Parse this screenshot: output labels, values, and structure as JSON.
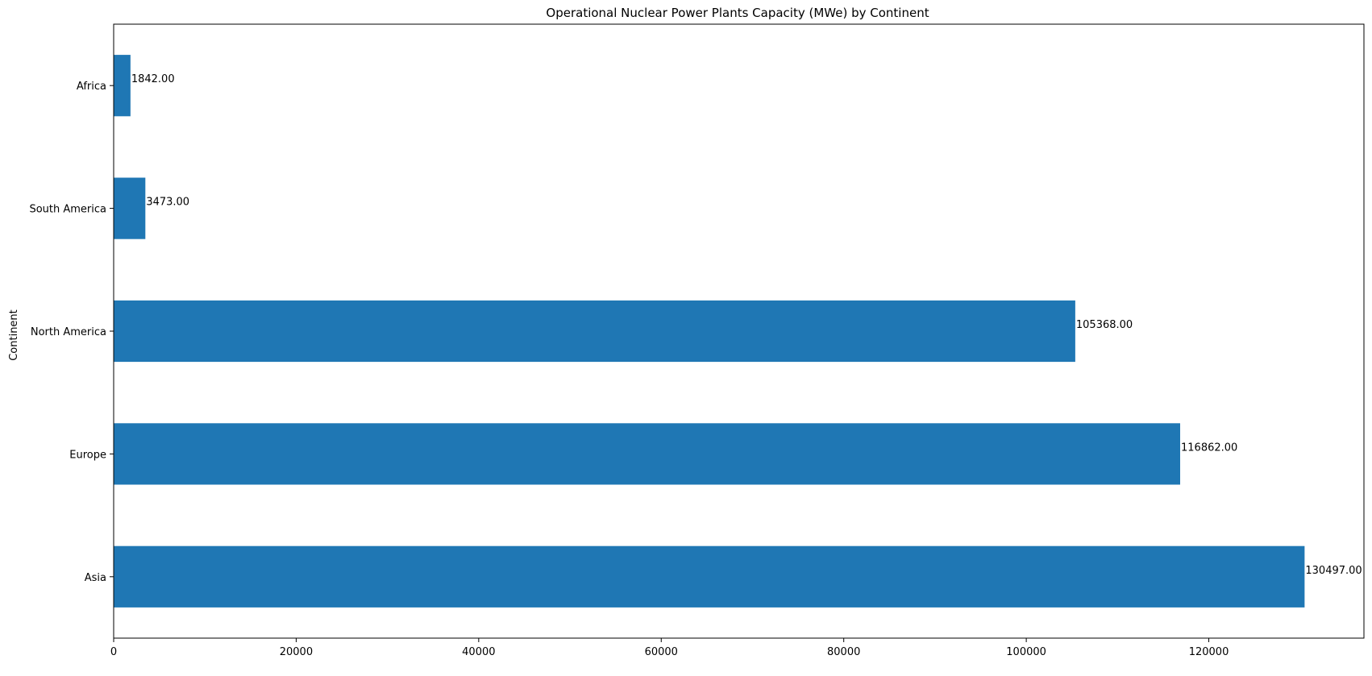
{
  "chart_data": {
    "type": "bar",
    "orientation": "horizontal",
    "title": "Operational Nuclear Power Plants Capacity (MWe) by Continent",
    "xlabel": "",
    "ylabel": "Continent",
    "categories": [
      "Asia",
      "Europe",
      "North America",
      "South America",
      "Africa"
    ],
    "values": [
      130497,
      116862,
      105368,
      3473,
      1842
    ],
    "value_labels": [
      "130497.00",
      "116862.00",
      "105368.00",
      "3473.00",
      "1842.00"
    ],
    "xlim": [
      0,
      137000
    ],
    "xticks": [
      0,
      20000,
      40000,
      60000,
      80000,
      100000,
      120000
    ],
    "xtick_labels": [
      "0",
      "20000",
      "40000",
      "60000",
      "80000",
      "100000",
      "120000"
    ],
    "grid": false,
    "legend": "none",
    "bar_color": "#1f77b4"
  }
}
